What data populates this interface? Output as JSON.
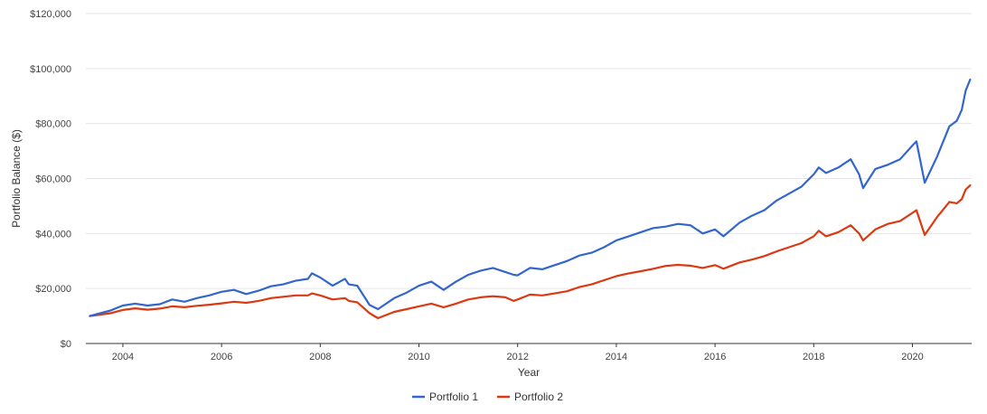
{
  "chart_data": {
    "type": "line",
    "xlabel": "Year",
    "ylabel": "Portfolio Balance ($)",
    "xlim": [
      2003.25,
      2021.2
    ],
    "ylim": [
      0,
      120000
    ],
    "x_ticks": [
      2004,
      2006,
      2008,
      2010,
      2012,
      2014,
      2016,
      2018,
      2020
    ],
    "y_ticks": [
      0,
      20000,
      40000,
      60000,
      80000,
      100000,
      120000
    ],
    "y_tick_labels": [
      "$0",
      "$20,000",
      "$40,000",
      "$60,000",
      "$80,000",
      "$100,000",
      "$120,000"
    ],
    "grid": true,
    "legend_position": "bottom",
    "series": [
      {
        "name": "Portfolio 1",
        "color": "#3366cc",
        "points": [
          [
            2003.33,
            10000
          ],
          [
            2003.75,
            12000
          ],
          [
            2004.0,
            13800
          ],
          [
            2004.25,
            14500
          ],
          [
            2004.5,
            13800
          ],
          [
            2004.75,
            14300
          ],
          [
            2005.0,
            16000
          ],
          [
            2005.25,
            15200
          ],
          [
            2005.5,
            16500
          ],
          [
            2005.75,
            17500
          ],
          [
            2006.0,
            18800
          ],
          [
            2006.25,
            19500
          ],
          [
            2006.5,
            18000
          ],
          [
            2006.75,
            19200
          ],
          [
            2007.0,
            20800
          ],
          [
            2007.25,
            21500
          ],
          [
            2007.5,
            22800
          ],
          [
            2007.75,
            23500
          ],
          [
            2007.83,
            25500
          ],
          [
            2008.0,
            24000
          ],
          [
            2008.25,
            21000
          ],
          [
            2008.5,
            23500
          ],
          [
            2008.58,
            21500
          ],
          [
            2008.75,
            21000
          ],
          [
            2009.0,
            14000
          ],
          [
            2009.17,
            12500
          ],
          [
            2009.5,
            16500
          ],
          [
            2009.75,
            18500
          ],
          [
            2010.0,
            21000
          ],
          [
            2010.25,
            22500
          ],
          [
            2010.5,
            19500
          ],
          [
            2010.75,
            22500
          ],
          [
            2011.0,
            25000
          ],
          [
            2011.25,
            26500
          ],
          [
            2011.5,
            27500
          ],
          [
            2011.75,
            26000
          ],
          [
            2011.92,
            25000
          ],
          [
            2012.0,
            24800
          ],
          [
            2012.25,
            27500
          ],
          [
            2012.5,
            27000
          ],
          [
            2012.75,
            28500
          ],
          [
            2013.0,
            30000
          ],
          [
            2013.25,
            32000
          ],
          [
            2013.5,
            33000
          ],
          [
            2013.75,
            35000
          ],
          [
            2014.0,
            37500
          ],
          [
            2014.25,
            39000
          ],
          [
            2014.5,
            40500
          ],
          [
            2014.75,
            42000
          ],
          [
            2015.0,
            42500
          ],
          [
            2015.25,
            43500
          ],
          [
            2015.5,
            43000
          ],
          [
            2015.75,
            40000
          ],
          [
            2016.0,
            41500
          ],
          [
            2016.17,
            39000
          ],
          [
            2016.5,
            44000
          ],
          [
            2016.75,
            46500
          ],
          [
            2017.0,
            48500
          ],
          [
            2017.25,
            52000
          ],
          [
            2017.5,
            54500
          ],
          [
            2017.75,
            57000
          ],
          [
            2018.0,
            61500
          ],
          [
            2018.1,
            64000
          ],
          [
            2018.25,
            62000
          ],
          [
            2018.5,
            64000
          ],
          [
            2018.75,
            67000
          ],
          [
            2018.92,
            61500
          ],
          [
            2019.0,
            56500
          ],
          [
            2019.25,
            63500
          ],
          [
            2019.5,
            65000
          ],
          [
            2019.75,
            67000
          ],
          [
            2020.0,
            72000
          ],
          [
            2020.08,
            73500
          ],
          [
            2020.25,
            58500
          ],
          [
            2020.5,
            68000
          ],
          [
            2020.75,
            79000
          ],
          [
            2020.9,
            81000
          ],
          [
            2021.0,
            85000
          ],
          [
            2021.08,
            92000
          ],
          [
            2021.17,
            96000
          ]
        ]
      },
      {
        "name": "Portfolio 2",
        "color": "#dc3912",
        "points": [
          [
            2003.33,
            10000
          ],
          [
            2003.75,
            11000
          ],
          [
            2004.0,
            12200
          ],
          [
            2004.25,
            12800
          ],
          [
            2004.5,
            12300
          ],
          [
            2004.75,
            12700
          ],
          [
            2005.0,
            13500
          ],
          [
            2005.25,
            13200
          ],
          [
            2005.5,
            13700
          ],
          [
            2005.75,
            14100
          ],
          [
            2006.0,
            14600
          ],
          [
            2006.25,
            15200
          ],
          [
            2006.5,
            14800
          ],
          [
            2006.75,
            15500
          ],
          [
            2007.0,
            16500
          ],
          [
            2007.25,
            17000
          ],
          [
            2007.5,
            17500
          ],
          [
            2007.75,
            17500
          ],
          [
            2007.83,
            18200
          ],
          [
            2008.0,
            17500
          ],
          [
            2008.25,
            16000
          ],
          [
            2008.5,
            16500
          ],
          [
            2008.58,
            15500
          ],
          [
            2008.75,
            15000
          ],
          [
            2009.0,
            11000
          ],
          [
            2009.17,
            9200
          ],
          [
            2009.5,
            11500
          ],
          [
            2009.75,
            12500
          ],
          [
            2010.0,
            13500
          ],
          [
            2010.25,
            14500
          ],
          [
            2010.5,
            13200
          ],
          [
            2010.75,
            14500
          ],
          [
            2011.0,
            16000
          ],
          [
            2011.25,
            16800
          ],
          [
            2011.5,
            17200
          ],
          [
            2011.75,
            16800
          ],
          [
            2011.92,
            15500
          ],
          [
            2012.0,
            16000
          ],
          [
            2012.25,
            17800
          ],
          [
            2012.5,
            17500
          ],
          [
            2012.75,
            18200
          ],
          [
            2013.0,
            19000
          ],
          [
            2013.25,
            20500
          ],
          [
            2013.5,
            21500
          ],
          [
            2013.75,
            23000
          ],
          [
            2014.0,
            24500
          ],
          [
            2014.25,
            25500
          ],
          [
            2014.5,
            26300
          ],
          [
            2014.75,
            27200
          ],
          [
            2015.0,
            28200
          ],
          [
            2015.25,
            28600
          ],
          [
            2015.5,
            28300
          ],
          [
            2015.75,
            27500
          ],
          [
            2016.0,
            28500
          ],
          [
            2016.17,
            27200
          ],
          [
            2016.5,
            29500
          ],
          [
            2016.75,
            30500
          ],
          [
            2017.0,
            31800
          ],
          [
            2017.25,
            33500
          ],
          [
            2017.5,
            35000
          ],
          [
            2017.75,
            36500
          ],
          [
            2018.0,
            39000
          ],
          [
            2018.1,
            41000
          ],
          [
            2018.25,
            39000
          ],
          [
            2018.5,
            40500
          ],
          [
            2018.75,
            43000
          ],
          [
            2018.92,
            40000
          ],
          [
            2019.0,
            37500
          ],
          [
            2019.25,
            41500
          ],
          [
            2019.5,
            43500
          ],
          [
            2019.75,
            44500
          ],
          [
            2020.0,
            47500
          ],
          [
            2020.08,
            48500
          ],
          [
            2020.25,
            39500
          ],
          [
            2020.5,
            46000
          ],
          [
            2020.75,
            51500
          ],
          [
            2020.9,
            51000
          ],
          [
            2021.0,
            52500
          ],
          [
            2021.08,
            56000
          ],
          [
            2021.17,
            57500
          ]
        ]
      }
    ]
  }
}
